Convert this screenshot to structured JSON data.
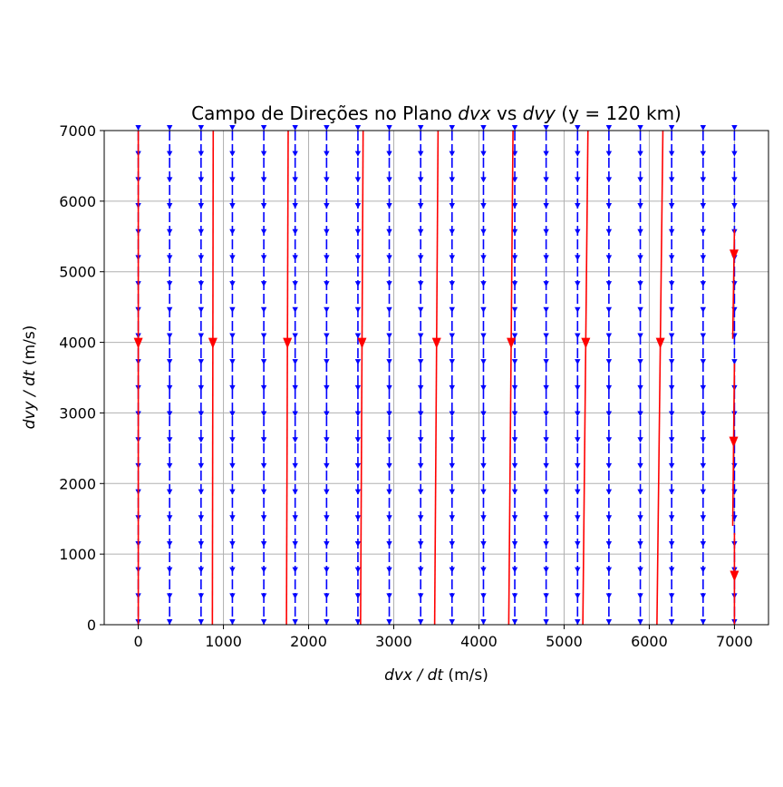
{
  "chart_data": {
    "type": "direction-field",
    "title_parts": [
      "Campo de Direções no Plano ",
      "dvx",
      " vs ",
      "dvy",
      " (y = 120 km)"
    ],
    "xlabel_parts": [
      "dvx / dt",
      " (m/s)"
    ],
    "ylabel_parts": [
      "dvy / dt",
      " (m/s)"
    ],
    "xlim": [
      -400,
      7400
    ],
    "ylim": [
      0,
      7000
    ],
    "x_ticks": [
      0,
      1000,
      2000,
      3000,
      4000,
      5000,
      6000,
      7000
    ],
    "y_ticks": [
      0,
      1000,
      2000,
      3000,
      4000,
      5000,
      6000,
      7000
    ],
    "grid": true,
    "field": {
      "color": "#0000ff",
      "direction": "down",
      "columns_x": [
        0,
        368,
        737,
        1105,
        1474,
        1842,
        2211,
        2579,
        2947,
        3316,
        3684,
        4053,
        4421,
        4789,
        5158,
        5526,
        5895,
        6263,
        6632,
        7000
      ],
      "rows_y": [
        0,
        368,
        737,
        1105,
        1474,
        1842,
        2211,
        2579,
        2947,
        3316,
        3684,
        4053,
        4421,
        4789,
        5158,
        5526,
        5895,
        6263,
        6632,
        7000
      ]
    },
    "trajectories": {
      "color": "#ff0000",
      "lines": [
        {
          "x_top": 0,
          "x_bottom": 0,
          "y_top": 7000,
          "y_bottom": 0,
          "arrow_y": 4000
        },
        {
          "x_top": 880,
          "x_bottom": 870,
          "y_top": 7000,
          "y_bottom": 0,
          "arrow_y": 4000
        },
        {
          "x_top": 1760,
          "x_bottom": 1740,
          "y_top": 7000,
          "y_bottom": 0,
          "arrow_y": 4000
        },
        {
          "x_top": 2640,
          "x_bottom": 2610,
          "y_top": 7000,
          "y_bottom": 0,
          "arrow_y": 4000
        },
        {
          "x_top": 3520,
          "x_bottom": 3480,
          "y_top": 7000,
          "y_bottom": 0,
          "arrow_y": 4000
        },
        {
          "x_top": 4400,
          "x_bottom": 4350,
          "y_top": 7000,
          "y_bottom": 0,
          "arrow_y": 4000
        },
        {
          "x_top": 5280,
          "x_bottom": 5220,
          "y_top": 7000,
          "y_bottom": 0,
          "arrow_y": 4000
        },
        {
          "x_top": 6160,
          "x_bottom": 6090,
          "y_top": 7000,
          "y_bottom": 0,
          "arrow_y": 4000
        },
        {
          "x_top": 7000,
          "x_bottom": 6980,
          "y_top": 5600,
          "y_bottom": 4050,
          "arrow_y": 5250
        },
        {
          "x_top": 7000,
          "x_bottom": 6980,
          "y_top": 3700,
          "y_bottom": 1400,
          "arrow_y": 2600
        },
        {
          "x_top": 7000,
          "x_bottom": 7000,
          "y_top": 1300,
          "y_bottom": 0,
          "arrow_y": 700
        }
      ]
    }
  }
}
